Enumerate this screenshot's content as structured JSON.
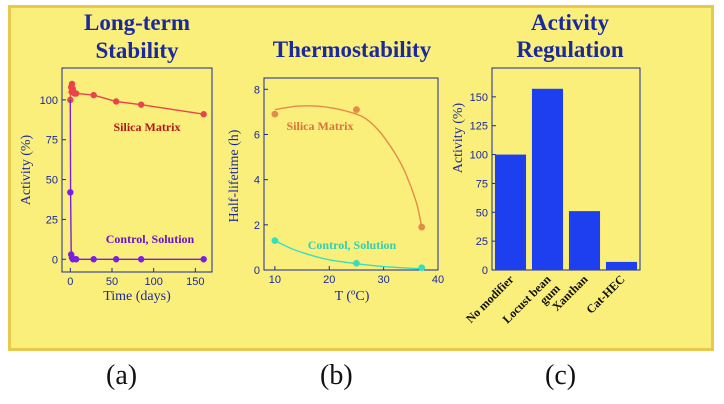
{
  "colors": {
    "panel_bg": "#fbef7c",
    "panel_border": "#e9c84e",
    "axis": "#1a2a9c",
    "silica": "#e8454a",
    "control": "#7b1ee0",
    "thermo_silica": "#e58a48",
    "thermo_control": "#35e0c0",
    "bar": "#1e3ff0"
  },
  "labels": {
    "a": "(a)",
    "b": "(b)",
    "c": "(c)"
  },
  "chart_data": [
    {
      "id": "a",
      "type": "scatter",
      "title_lines": [
        "Long-term",
        "Stability"
      ],
      "xlabel": "Time   (days)",
      "ylabel": "Activity   (%)",
      "xlim": [
        -10,
        170
      ],
      "ylim": [
        -8,
        120
      ],
      "xticks": [
        0,
        50,
        100,
        150
      ],
      "yticks": [
        0,
        25,
        50,
        75,
        100
      ],
      "series": [
        {
          "name": "Silica Matrix",
          "color_key": "silica",
          "points": [
            [
              0,
              100
            ],
            [
              1,
              108
            ],
            [
              1.5,
              105
            ],
            [
              2,
              110
            ],
            [
              3,
              107
            ],
            [
              5,
              104
            ],
            [
              7,
              104
            ],
            [
              28,
              103
            ],
            [
              55,
              99
            ],
            [
              85,
              97
            ],
            [
              160,
              91
            ]
          ],
          "line": [
            [
              0,
              100
            ],
            [
              0.5,
              108
            ],
            [
              1,
              109
            ],
            [
              1.5,
              106
            ],
            [
              2,
              110
            ],
            [
              3,
              106
            ],
            [
              7,
              104
            ],
            [
              28,
              103
            ],
            [
              55,
              99
            ],
            [
              85,
              97
            ],
            [
              160,
              91
            ]
          ]
        },
        {
          "name": "Control, Solution",
          "color_key": "control",
          "points": [
            [
              0,
              42
            ],
            [
              1,
              3
            ],
            [
              2,
              1
            ],
            [
              3,
              0
            ],
            [
              7,
              0
            ],
            [
              28,
              0
            ],
            [
              55,
              0
            ],
            [
              85,
              0
            ],
            [
              160,
              0
            ]
          ],
          "line": [
            [
              0,
              100
            ],
            [
              0.3,
              42
            ],
            [
              1,
              3
            ],
            [
              2,
              1
            ],
            [
              3,
              0
            ],
            [
              28,
              0
            ],
            [
              55,
              0
            ],
            [
              85,
              0
            ],
            [
              160,
              0
            ]
          ]
        }
      ]
    },
    {
      "id": "b",
      "type": "scatter",
      "title_lines": [
        "Thermostability"
      ],
      "xlabel": "T   (ºC)",
      "ylabel": "Half-lifetime (h)",
      "xlim": [
        8,
        40
      ],
      "ylim": [
        0,
        8.5
      ],
      "xticks": [
        10,
        20,
        30,
        40
      ],
      "yticks": [
        0,
        2,
        4,
        6,
        8
      ],
      "series": [
        {
          "name": "Silica Matrix",
          "color_key": "thermo_silica",
          "points": [
            [
              10,
              6.9
            ],
            [
              25,
              7.1
            ],
            [
              37,
              1.9
            ]
          ],
          "curve": [
            [
              10,
              7.1
            ],
            [
              14,
              7.25
            ],
            [
              18,
              7.25
            ],
            [
              22,
              7.1
            ],
            [
              26,
              6.8
            ],
            [
              29,
              6.2
            ],
            [
              32,
              5.2
            ],
            [
              34,
              4.3
            ],
            [
              36,
              3.0
            ],
            [
              37,
              1.9
            ]
          ]
        },
        {
          "name": "Control, Solution",
          "color_key": "thermo_control",
          "points": [
            [
              10,
              1.3
            ],
            [
              25,
              0.3
            ],
            [
              37,
              0.1
            ]
          ],
          "curve": [
            [
              10,
              1.3
            ],
            [
              13,
              0.95
            ],
            [
              16,
              0.7
            ],
            [
              20,
              0.45
            ],
            [
              25,
              0.28
            ],
            [
              30,
              0.15
            ],
            [
              37,
              0.05
            ]
          ]
        }
      ]
    },
    {
      "id": "c",
      "type": "bar",
      "title_lines": [
        "Activity",
        "Regulation"
      ],
      "ylabel": "Activity (%)",
      "ylim": [
        0,
        175
      ],
      "yticks": [
        0,
        25,
        50,
        75,
        100,
        125,
        150
      ],
      "categories": [
        "No modifier",
        "Locust bean gum",
        "Xanthan",
        "Cat-HEC"
      ],
      "category_lines": [
        [
          "No modifier"
        ],
        [
          "Locust bean",
          "gum"
        ],
        [
          "Xanthan"
        ],
        [
          "Cat-HEC"
        ]
      ],
      "values": [
        100,
        157,
        51,
        7
      ]
    }
  ]
}
